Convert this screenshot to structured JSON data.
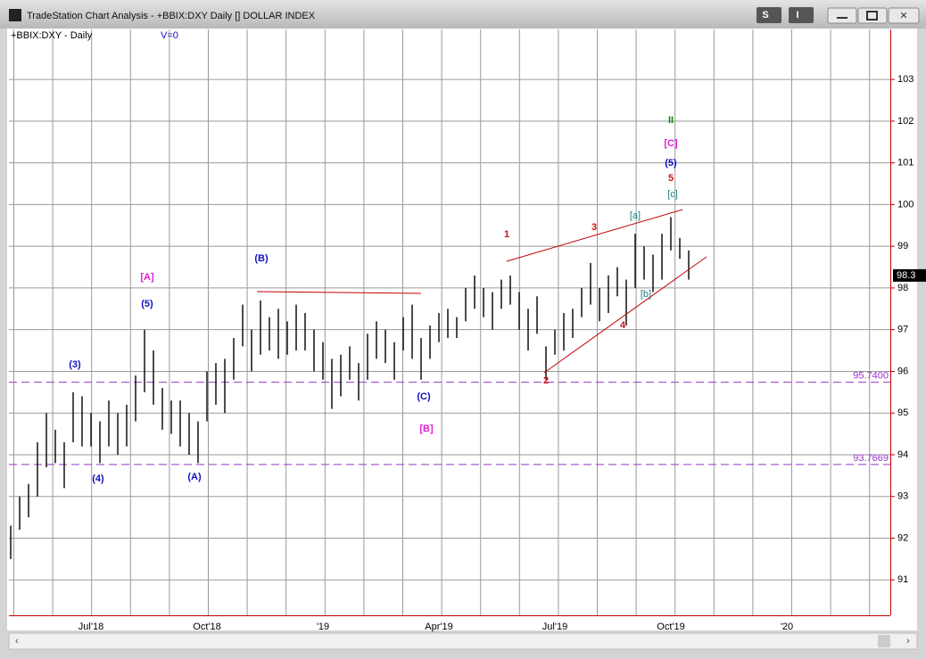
{
  "window": {
    "title": "TradeStation Chart Analysis - +BBIX:DXY Daily [] DOLLAR INDEX",
    "buttons": [
      "S",
      "I"
    ]
  },
  "chart_data": {
    "type": "hilo",
    "symbol_label": "+BBIX:DXY - Daily",
    "volume_label": "V=0",
    "color": "#000000",
    "categories": [
      null,
      null,
      null,
      null,
      null,
      null,
      null,
      null,
      null,
      "Jul'18",
      null,
      null,
      null,
      null,
      null,
      null,
      null,
      null,
      null,
      null,
      null,
      null,
      "Oct'18",
      null,
      null,
      null,
      null,
      null,
      null,
      null,
      null,
      null,
      null,
      null,
      null,
      "'19",
      null,
      null,
      null,
      null,
      null,
      null,
      null,
      null,
      null,
      null,
      null,
      null,
      "Apr'19",
      null,
      null,
      null,
      null,
      null,
      null,
      null,
      null,
      null,
      null,
      null,
      null,
      "Jul'19",
      null,
      null,
      null,
      null,
      null,
      null,
      null,
      null,
      null,
      null,
      null,
      null,
      "Oct'19",
      null,
      null,
      null,
      null,
      null,
      null,
      null,
      null,
      null,
      null,
      null,
      null,
      "'20",
      null,
      null,
      null,
      null,
      null,
      null,
      null,
      null,
      null,
      null
    ],
    "highs": [
      92.3,
      93.0,
      93.3,
      94.3,
      95.0,
      94.6,
      94.3,
      95.5,
      95.4,
      95.0,
      94.8,
      95.3,
      95.0,
      95.2,
      95.9,
      97.0,
      96.5,
      95.6,
      95.3,
      95.3,
      95.0,
      94.8,
      96.0,
      96.2,
      96.3,
      96.8,
      97.6,
      97.0,
      97.7,
      97.3,
      97.5,
      97.2,
      97.6,
      97.4,
      97.0,
      96.7,
      96.3,
      96.4,
      96.6,
      96.2,
      96.9,
      97.2,
      97.0,
      96.7,
      97.3,
      97.6,
      96.8,
      97.1,
      97.4,
      97.5,
      97.3,
      98.0,
      98.3,
      98.0,
      97.9,
      98.2,
      98.3,
      97.9,
      97.5,
      97.8,
      96.6,
      97.0,
      97.4,
      97.5,
      98.0,
      98.6,
      98.0,
      98.3,
      98.5,
      98.2,
      99.3,
      99.0,
      98.8,
      99.3,
      99.7,
      99.2,
      98.9,
      null,
      null,
      null,
      null,
      null,
      null,
      null,
      null,
      null,
      null,
      null,
      null,
      null,
      null,
      null,
      null,
      null,
      null,
      null,
      null,
      null
    ],
    "lows": [
      91.5,
      92.2,
      92.5,
      93.0,
      93.7,
      93.8,
      93.2,
      94.3,
      94.2,
      94.2,
      93.8,
      94.2,
      94.0,
      94.2,
      94.8,
      95.5,
      95.2,
      94.6,
      94.5,
      94.2,
      94.0,
      93.8,
      94.8,
      95.2,
      95.0,
      95.8,
      96.6,
      96.0,
      96.4,
      96.5,
      96.3,
      96.4,
      96.5,
      96.5,
      96.0,
      95.8,
      95.1,
      95.4,
      95.8,
      95.3,
      95.8,
      96.3,
      96.2,
      95.8,
      96.5,
      96.3,
      95.8,
      96.3,
      96.7,
      96.8,
      96.8,
      97.2,
      97.5,
      97.3,
      97.0,
      97.5,
      97.6,
      97.0,
      96.5,
      96.9,
      95.8,
      96.4,
      96.5,
      96.8,
      97.3,
      97.6,
      97.2,
      97.4,
      97.8,
      97.1,
      98.0,
      98.2,
      97.9,
      98.2,
      98.9,
      98.7,
      98.2,
      null,
      null,
      null,
      null,
      null,
      null,
      null,
      null,
      null,
      null,
      null,
      null,
      null,
      null,
      null,
      null,
      null,
      null,
      null,
      null,
      null
    ],
    "ylim": [
      90.15,
      104.2
    ],
    "yticks": [
      91,
      92,
      93,
      94,
      95,
      96,
      97,
      98,
      99,
      100,
      101,
      102,
      103
    ],
    "grid": true,
    "last_price": {
      "value": 98.3,
      "label": "98.3"
    },
    "hlines": [
      {
        "value": 95.74,
        "label": "95.7400",
        "color": "#9933cc"
      },
      {
        "value": 93.7669,
        "label": "93.7669",
        "color": "#9933cc"
      }
    ],
    "annotations": [
      {
        "text": "[A]",
        "color": "#e020d0"
      },
      {
        "text": "(5)",
        "color": "#1010c0"
      },
      {
        "text": "(3)",
        "color": "#1010c0"
      },
      {
        "text": "(4)",
        "color": "#1010c0"
      },
      {
        "text": "(A)",
        "color": "#1010c0"
      },
      {
        "text": "(B)",
        "color": "#1010c0"
      },
      {
        "text": "(C)",
        "color": "#1010c0"
      },
      {
        "text": "[B]",
        "color": "#e020d0"
      },
      {
        "text": "1",
        "color": "#d01010"
      },
      {
        "text": "3",
        "color": "#d01010"
      },
      {
        "text": "2",
        "color": "#d01010"
      },
      {
        "text": "4",
        "color": "#d01010"
      },
      {
        "text": "[a]",
        "color": "#208080"
      },
      {
        "text": "[b]",
        "color": "#208080"
      },
      {
        "text": "[c]",
        "color": "#208080"
      },
      {
        "text": "5",
        "color": "#d01010"
      },
      {
        "text": "(5)",
        "color": "#1010c0"
      },
      {
        "text": "[C]",
        "color": "#e020d0"
      },
      {
        "text": "II",
        "color": "#108010"
      }
    ]
  }
}
